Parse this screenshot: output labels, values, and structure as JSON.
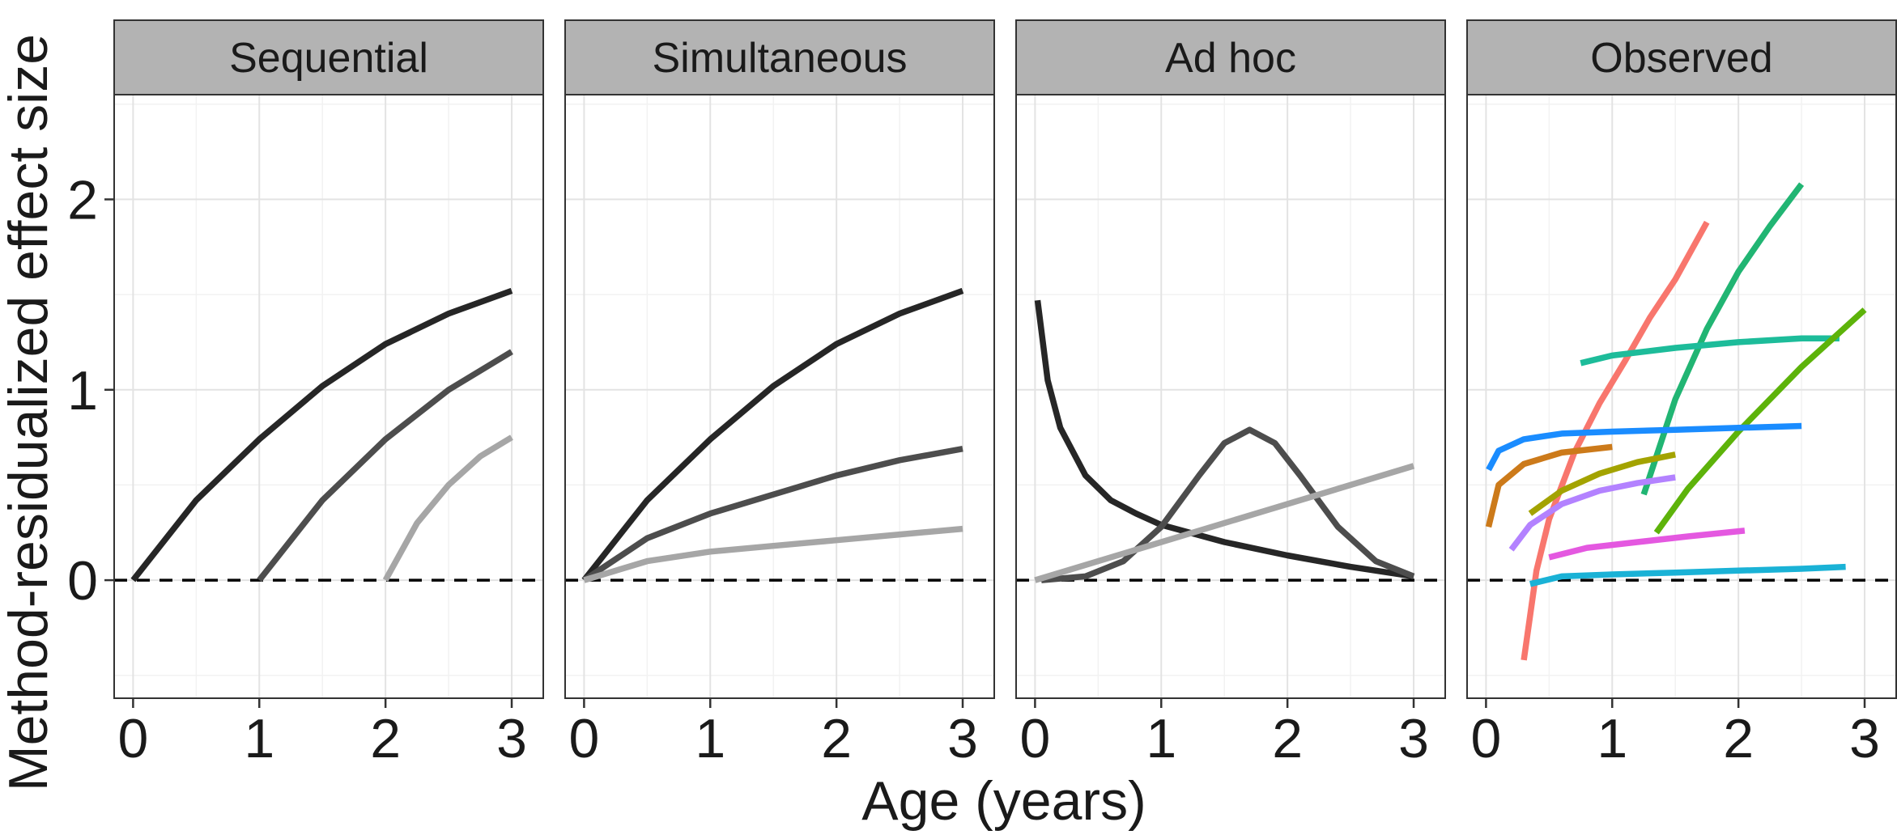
{
  "chart_data": {
    "type": "line",
    "xlabel": "Age (years)",
    "ylabel": "Method-residualized effect size",
    "xlim": [
      -0.15,
      3.25
    ],
    "ylim": [
      -0.62,
      2.55
    ],
    "x_ticks": [
      0,
      1,
      2,
      3
    ],
    "y_ticks": [
      0,
      1,
      2
    ],
    "reference_line": {
      "y": 0,
      "style": "dashed"
    },
    "grid": true,
    "panels": [
      {
        "title": "Sequential",
        "series": [
          {
            "color": "#262626",
            "points": [
              [
                0,
                0
              ],
              [
                0.5,
                0.42
              ],
              [
                1,
                0.74
              ],
              [
                1.5,
                1.02
              ],
              [
                2,
                1.24
              ],
              [
                2.5,
                1.4
              ],
              [
                3,
                1.52
              ]
            ]
          },
          {
            "color": "#4d4d4d",
            "points": [
              [
                1,
                0
              ],
              [
                1.5,
                0.42
              ],
              [
                2,
                0.74
              ],
              [
                2.5,
                1.0
              ],
              [
                3,
                1.2
              ]
            ]
          },
          {
            "color": "#a6a6a6",
            "points": [
              [
                2,
                0
              ],
              [
                2.25,
                0.3
              ],
              [
                2.5,
                0.5
              ],
              [
                2.75,
                0.65
              ],
              [
                3,
                0.75
              ]
            ]
          }
        ]
      },
      {
        "title": "Simultaneous",
        "series": [
          {
            "color": "#262626",
            "points": [
              [
                0,
                0
              ],
              [
                0.5,
                0.42
              ],
              [
                1,
                0.74
              ],
              [
                1.5,
                1.02
              ],
              [
                2,
                1.24
              ],
              [
                2.5,
                1.4
              ],
              [
                3,
                1.52
              ]
            ]
          },
          {
            "color": "#4d4d4d",
            "points": [
              [
                0,
                0
              ],
              [
                0.5,
                0.22
              ],
              [
                1,
                0.35
              ],
              [
                1.5,
                0.45
              ],
              [
                2,
                0.55
              ],
              [
                2.5,
                0.63
              ],
              [
                3,
                0.69
              ]
            ]
          },
          {
            "color": "#a6a6a6",
            "points": [
              [
                0,
                0
              ],
              [
                0.5,
                0.1
              ],
              [
                1,
                0.15
              ],
              [
                1.5,
                0.18
              ],
              [
                2,
                0.21
              ],
              [
                2.5,
                0.24
              ],
              [
                3,
                0.27
              ]
            ]
          }
        ]
      },
      {
        "title": "Ad hoc",
        "series": [
          {
            "color": "#262626",
            "points": [
              [
                0.02,
                1.47
              ],
              [
                0.1,
                1.05
              ],
              [
                0.2,
                0.8
              ],
              [
                0.4,
                0.55
              ],
              [
                0.6,
                0.42
              ],
              [
                0.8,
                0.35
              ],
              [
                1,
                0.29
              ],
              [
                1.5,
                0.2
              ],
              [
                2,
                0.13
              ],
              [
                2.5,
                0.07
              ],
              [
                3,
                0.02
              ]
            ]
          },
          {
            "color": "#4d4d4d",
            "points": [
              [
                0.05,
                0
              ],
              [
                0.4,
                0.02
              ],
              [
                0.7,
                0.1
              ],
              [
                1,
                0.28
              ],
              [
                1.3,
                0.55
              ],
              [
                1.5,
                0.72
              ],
              [
                1.7,
                0.79
              ],
              [
                1.9,
                0.72
              ],
              [
                2.1,
                0.55
              ],
              [
                2.4,
                0.28
              ],
              [
                2.7,
                0.1
              ],
              [
                3,
                0.02
              ]
            ]
          },
          {
            "color": "#a6a6a6",
            "points": [
              [
                0,
                0
              ],
              [
                3,
                0.6
              ]
            ]
          }
        ]
      },
      {
        "title": "Observed",
        "series": [
          {
            "color": "#f8766d",
            "points": [
              [
                0.3,
                -0.42
              ],
              [
                0.4,
                0.05
              ],
              [
                0.5,
                0.32
              ],
              [
                0.7,
                0.67
              ],
              [
                0.9,
                0.93
              ],
              [
                1.1,
                1.15
              ],
              [
                1.3,
                1.38
              ],
              [
                1.5,
                1.58
              ],
              [
                1.75,
                1.88
              ]
            ]
          },
          {
            "color": "#21b573",
            "points": [
              [
                1.25,
                0.45
              ],
              [
                1.5,
                0.95
              ],
              [
                1.75,
                1.32
              ],
              [
                2,
                1.62
              ],
              [
                2.25,
                1.86
              ],
              [
                2.5,
                2.08
              ]
            ]
          },
          {
            "color": "#1dbc9a",
            "points": [
              [
                0.75,
                1.14
              ],
              [
                1,
                1.18
              ],
              [
                1.5,
                1.22
              ],
              [
                2,
                1.25
              ],
              [
                2.5,
                1.27
              ],
              [
                2.8,
                1.27
              ]
            ]
          },
          {
            "color": "#5db30a",
            "points": [
              [
                1.35,
                0.25
              ],
              [
                1.6,
                0.48
              ],
              [
                2,
                0.78
              ],
              [
                2.5,
                1.12
              ],
              [
                3,
                1.42
              ]
            ]
          },
          {
            "color": "#1a8cff",
            "points": [
              [
                0.02,
                0.58
              ],
              [
                0.1,
                0.68
              ],
              [
                0.3,
                0.74
              ],
              [
                0.6,
                0.77
              ],
              [
                1,
                0.78
              ],
              [
                1.5,
                0.79
              ],
              [
                2,
                0.8
              ],
              [
                2.5,
                0.81
              ]
            ]
          },
          {
            "color": "#cc7a1a",
            "points": [
              [
                0.02,
                0.28
              ],
              [
                0.1,
                0.5
              ],
              [
                0.3,
                0.61
              ],
              [
                0.6,
                0.67
              ],
              [
                1,
                0.7
              ]
            ]
          },
          {
            "color": "#a3a300",
            "points": [
              [
                0.35,
                0.35
              ],
              [
                0.6,
                0.47
              ],
              [
                0.9,
                0.56
              ],
              [
                1.2,
                0.62
              ],
              [
                1.5,
                0.66
              ]
            ]
          },
          {
            "color": "#b382ff",
            "points": [
              [
                0.2,
                0.16
              ],
              [
                0.35,
                0.29
              ],
              [
                0.6,
                0.4
              ],
              [
                0.9,
                0.47
              ],
              [
                1.2,
                0.51
              ],
              [
                1.5,
                0.54
              ]
            ]
          },
          {
            "color": "#e458e0",
            "points": [
              [
                0.5,
                0.12
              ],
              [
                0.8,
                0.17
              ],
              [
                1.2,
                0.2
              ],
              [
                1.6,
                0.23
              ],
              [
                2.05,
                0.26
              ]
            ]
          },
          {
            "color": "#1ab2d6",
            "points": [
              [
                0.35,
                -0.02
              ],
              [
                0.6,
                0.02
              ],
              [
                1,
                0.03
              ],
              [
                1.5,
                0.04
              ],
              [
                2,
                0.05
              ],
              [
                2.5,
                0.06
              ],
              [
                2.85,
                0.07
              ]
            ]
          }
        ]
      }
    ]
  }
}
